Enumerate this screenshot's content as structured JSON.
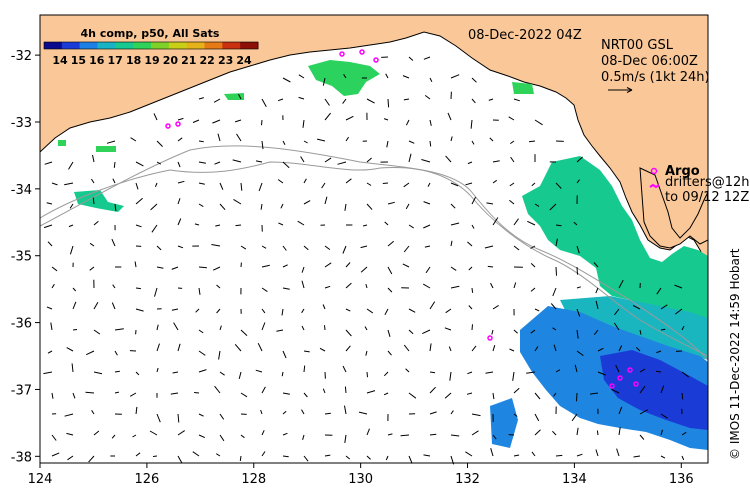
{
  "map": {
    "date_label": "08-Dec-2022 04Z",
    "product": {
      "line1": "NRT00 GSL",
      "line2": "08-Dec 06:00Z",
      "line3": "0.5m/s (1kt 24h)"
    },
    "legend": {
      "argo_label": "Argo",
      "drifters_line1": "drifters@12h",
      "drifters_line2": "to 09/12 12Z"
    },
    "credit": "© IMOS 11-Dec-2022 14:59 Hobart",
    "colorbar": {
      "title": "4h comp, p50, All Sats",
      "ticks": [
        "14",
        "15",
        "16",
        "17",
        "18",
        "19",
        "20",
        "21",
        "22",
        "23",
        "24"
      ],
      "colors": [
        "#0a0a8c",
        "#1b3bd6",
        "#1e7fe6",
        "#19b3c6",
        "#17c98e",
        "#2fd35a",
        "#7fd12a",
        "#c8cf16",
        "#e6b21a",
        "#e67a14",
        "#c83010",
        "#8c1008"
      ]
    },
    "x_axis": {
      "ticks": [
        "124",
        "126",
        "128",
        "130",
        "132",
        "134",
        "136"
      ],
      "range": [
        124,
        136.5
      ]
    },
    "y_axis": {
      "ticks": [
        "-32",
        "-33",
        "-34",
        "-35",
        "-36",
        "-37",
        "-38"
      ],
      "range": [
        -38.1,
        -31.4
      ]
    },
    "land_color": "#fac898",
    "argo_color": "#ff00ff"
  }
}
